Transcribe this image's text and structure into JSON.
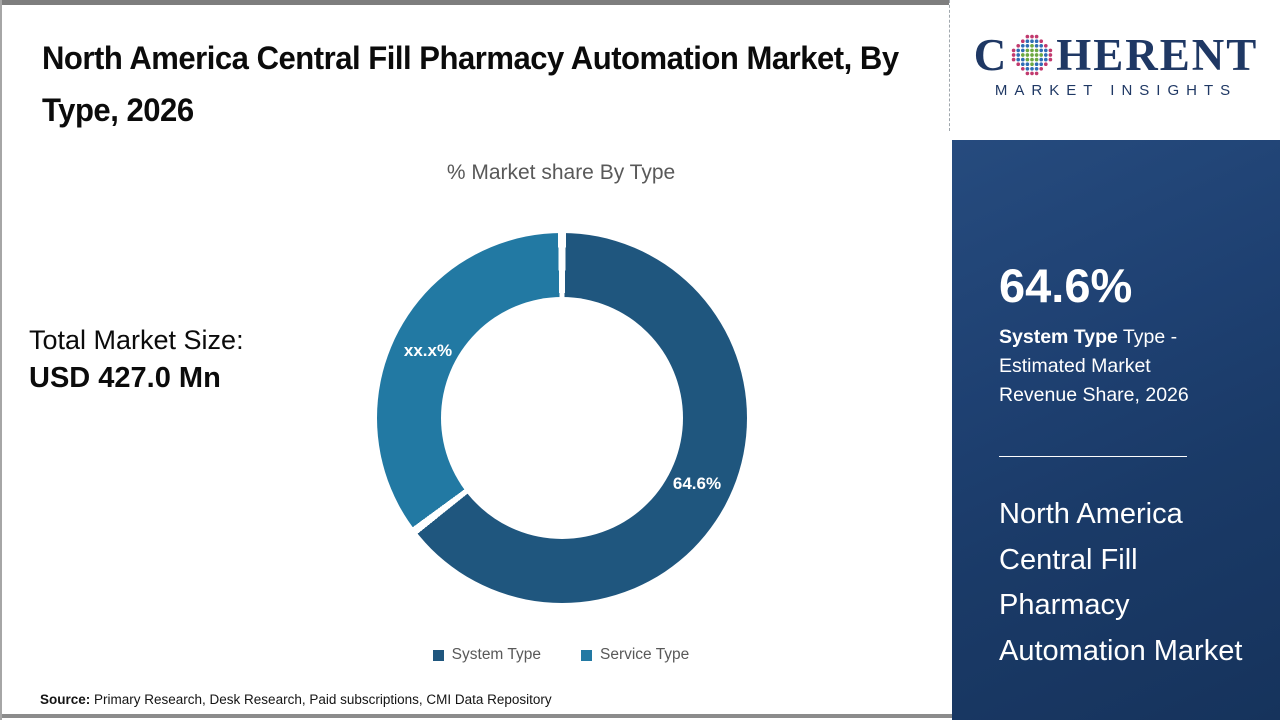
{
  "header": {
    "title": "North America Central Fill Pharmacy Automation Market, By Type, 2026"
  },
  "chart_data": {
    "type": "pie",
    "donut": true,
    "title": "% Market share By Type",
    "categories": [
      "System Type",
      "Service Type"
    ],
    "values": [
      64.6,
      35.4
    ],
    "data_labels": [
      "64.6%",
      "xx.x%"
    ],
    "colors": [
      "#1F567E",
      "#2279A3"
    ],
    "legend_position": "bottom",
    "start_angle_deg": 0
  },
  "left_panel": {
    "total_label": "Total Market Size:",
    "total_value": "USD 427.0 Mn"
  },
  "footer": {
    "source_label": "Source:",
    "source_text": " Primary Research, Desk Research, Paid subscriptions, CMI Data Repository"
  },
  "sidebar": {
    "logo": {
      "word_start": "C",
      "word_end": "HERENT",
      "subtext": "MARKET INSIGHTS",
      "globe_colors": {
        "inner": "#6CA842",
        "mid": "#2F6EB5",
        "outer": "#C13A6E"
      }
    },
    "stat": {
      "value": "64.6%",
      "label_bold": "System Type",
      "label_rest": " Type - Estimated Market Revenue Share, 2026"
    },
    "panel_title": "North America Central Fill Pharmacy Automation Market"
  },
  "theme": {
    "slice_dark": "#1F567E",
    "slice_teal": "#2279A3",
    "sidebar_navy": "#1B3C6B",
    "logo_navy": "#1F3864",
    "muted_gray": "#595959"
  }
}
